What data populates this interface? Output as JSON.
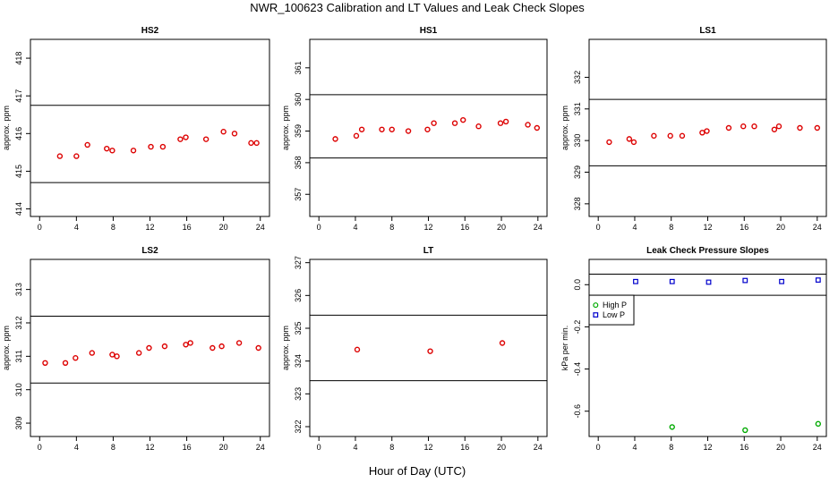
{
  "title": "NWR_100623  Calibration and LT Values and Leak Check Slopes",
  "xlabel": "Hour of Day (UTC)",
  "chart_data": [
    {
      "type": "scatter",
      "title": "HS2",
      "ylabel": "approx. ppm",
      "xlim": [
        -1,
        25
      ],
      "ylim": [
        413.8,
        418.5
      ],
      "xticks": [
        0,
        4,
        8,
        12,
        16,
        20,
        24
      ],
      "yticks": [
        414,
        415,
        416,
        417,
        418
      ],
      "hlines": [
        416.75,
        414.7
      ],
      "series": [
        {
          "color": "#dd0000",
          "marker": "circle",
          "x": [
            2.2,
            4.0,
            5.2,
            7.3,
            7.9,
            10.2,
            12.1,
            13.4,
            15.3,
            15.9,
            18.1,
            20.0,
            21.2,
            23.0,
            23.6
          ],
          "y": [
            415.4,
            415.4,
            415.7,
            415.6,
            415.55,
            415.55,
            415.65,
            415.65,
            415.85,
            415.9,
            415.85,
            416.05,
            416.0,
            415.75,
            415.75
          ]
        }
      ]
    },
    {
      "type": "scatter",
      "title": "HS1",
      "ylabel": "approx. ppm",
      "xlim": [
        -1,
        25
      ],
      "ylim": [
        356.3,
        361.9
      ],
      "xticks": [
        0,
        4,
        8,
        12,
        16,
        20,
        24
      ],
      "yticks": [
        357,
        358,
        359,
        360,
        361
      ],
      "hlines": [
        360.15,
        358.15
      ],
      "series": [
        {
          "color": "#dd0000",
          "marker": "circle",
          "x": [
            1.8,
            4.1,
            4.7,
            6.9,
            8.0,
            9.8,
            11.9,
            12.6,
            14.9,
            15.8,
            17.5,
            19.9,
            20.5,
            22.9,
            23.9
          ],
          "y": [
            358.75,
            358.85,
            359.05,
            359.05,
            359.05,
            359.0,
            359.05,
            359.25,
            359.25,
            359.35,
            359.15,
            359.25,
            359.3,
            359.2,
            359.1
          ]
        }
      ]
    },
    {
      "type": "scatter",
      "title": "LS1",
      "ylabel": "approx. ppm",
      "xlim": [
        -1,
        25
      ],
      "ylim": [
        327.6,
        333.2
      ],
      "xticks": [
        0,
        4,
        8,
        12,
        16,
        20,
        24
      ],
      "yticks": [
        328,
        329,
        330,
        331,
        332
      ],
      "hlines": [
        331.3,
        329.2
      ],
      "series": [
        {
          "color": "#dd0000",
          "marker": "circle",
          "x": [
            1.2,
            3.4,
            3.9,
            6.1,
            7.9,
            9.2,
            11.4,
            11.9,
            14.3,
            15.9,
            17.1,
            19.3,
            19.8,
            22.1,
            24.0
          ],
          "y": [
            329.95,
            330.05,
            329.95,
            330.15,
            330.15,
            330.15,
            330.25,
            330.3,
            330.4,
            330.45,
            330.45,
            330.35,
            330.45,
            330.4,
            330.4
          ]
        }
      ]
    },
    {
      "type": "scatter",
      "title": "LS2",
      "ylabel": "approx. ppm",
      "xlim": [
        -1,
        25
      ],
      "ylim": [
        308.6,
        313.9
      ],
      "xticks": [
        0,
        4,
        8,
        12,
        16,
        20,
        24
      ],
      "yticks": [
        309,
        310,
        311,
        312,
        313
      ],
      "hlines": [
        312.2,
        310.2
      ],
      "series": [
        {
          "color": "#dd0000",
          "marker": "circle",
          "x": [
            0.6,
            2.8,
            3.9,
            5.7,
            7.9,
            8.4,
            10.8,
            11.9,
            13.6,
            15.9,
            16.4,
            18.8,
            19.8,
            21.7,
            23.8
          ],
          "y": [
            310.8,
            310.8,
            310.95,
            311.1,
            311.05,
            311.0,
            311.1,
            311.25,
            311.3,
            311.35,
            311.4,
            311.25,
            311.3,
            311.4,
            311.25
          ]
        }
      ]
    },
    {
      "type": "scatter",
      "title": "LT",
      "ylabel": "approx. ppm",
      "xlim": [
        -1,
        25
      ],
      "ylim": [
        321.7,
        327.1
      ],
      "xticks": [
        0,
        4,
        8,
        12,
        16,
        20,
        24
      ],
      "yticks": [
        322,
        323,
        324,
        325,
        326,
        327
      ],
      "hlines": [
        325.4,
        323.4
      ],
      "series": [
        {
          "color": "#dd0000",
          "marker": "circle",
          "x": [
            4.2,
            12.2,
            20.1
          ],
          "y": [
            324.35,
            324.3,
            324.55
          ]
        }
      ]
    },
    {
      "type": "scatter",
      "title": "Leak Check Pressure Slopes",
      "ylabel": "kPa per min.",
      "xlim": [
        -1,
        25
      ],
      "ylim": [
        -0.72,
        0.12
      ],
      "xticks": [
        0,
        4,
        8,
        12,
        16,
        20,
        24
      ],
      "yticks": [
        0.0,
        -0.2,
        -0.4,
        -0.6
      ],
      "ytick_labels": [
        "0.0",
        "-0.2",
        "-0.4",
        "-0.6"
      ],
      "hlines": [
        0.05,
        -0.05
      ],
      "legend": {
        "position": "top-left",
        "entries": [
          "High P",
          "Low P"
        ]
      },
      "series": [
        {
          "name": "High P",
          "color": "#00aa00",
          "marker": "circle",
          "x": [
            8.1,
            16.1,
            24.1
          ],
          "y": [
            -0.675,
            -0.69,
            -0.66
          ]
        },
        {
          "name": "Low P",
          "color": "#0000cc",
          "marker": "square",
          "x": [
            4.1,
            8.1,
            12.1,
            16.1,
            20.1,
            24.1
          ],
          "y": [
            0.015,
            0.015,
            0.012,
            0.02,
            0.015,
            0.022
          ]
        }
      ]
    }
  ]
}
